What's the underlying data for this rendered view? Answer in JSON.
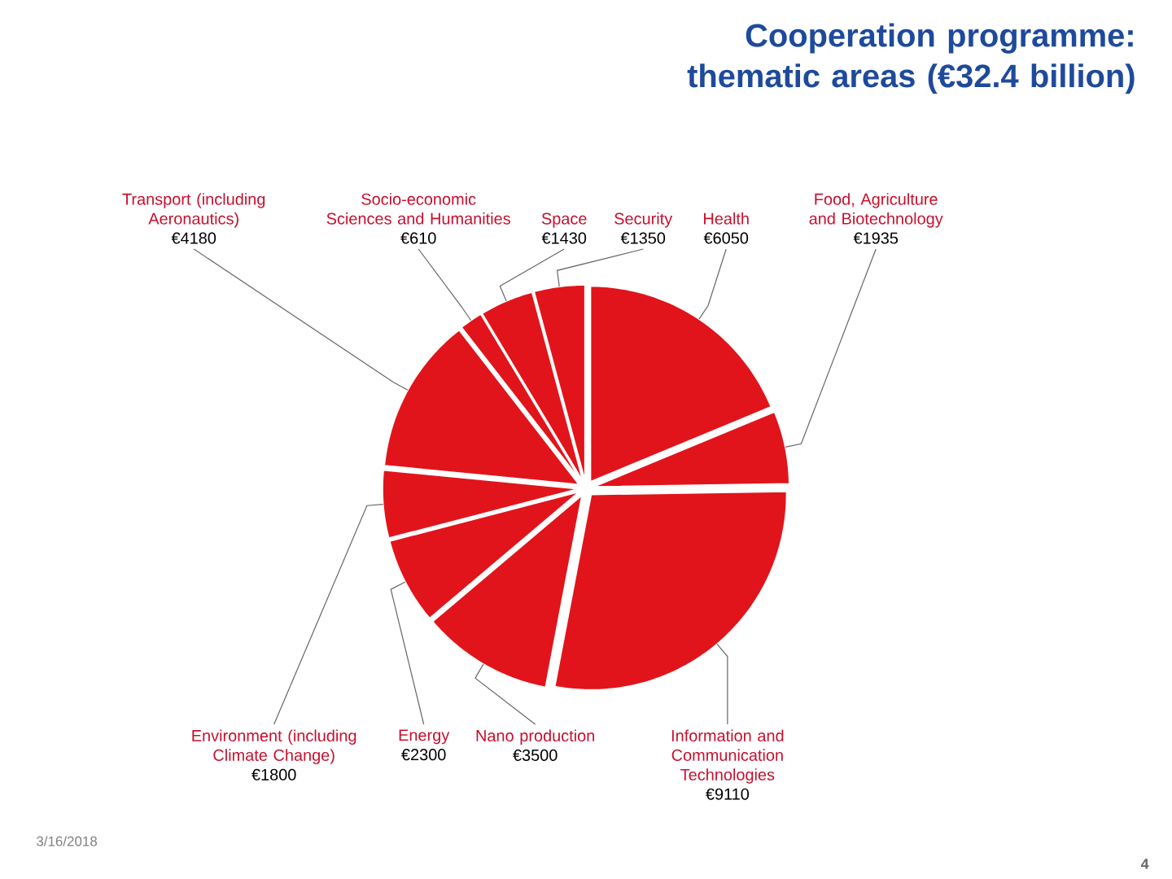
{
  "chart_data": {
    "type": "pie",
    "title": "Cooperation programme: thematic areas (€32.4 billion)",
    "categories": [
      "Health",
      "Food, Agriculture and Biotechnology",
      "Information and Communication Technologies",
      "Nano production",
      "Energy",
      "Environment (including Climate Change)",
      "Transport (including Aeronautics)",
      "Socio-economic Sciences and Humanities",
      "Space",
      "Security"
    ],
    "values": [
      6050,
      1935,
      9110,
      3500,
      2300,
      1800,
      4180,
      610,
      1430,
      1350
    ],
    "value_labels": [
      "€6050",
      "€1935",
      "€9110",
      "€3500",
      "€2300",
      "€1800",
      "€4180",
      "€610",
      "€1430",
      "€1350"
    ],
    "colors": [
      "#e2141b",
      "#e2141b",
      "#e2141b",
      "#e2141b",
      "#e2141b",
      "#e2141b",
      "#e2141b",
      "#e2141b",
      "#e2141b",
      "#e2141b"
    ],
    "annotations": [
      "3/16/2018",
      "4"
    ]
  }
}
